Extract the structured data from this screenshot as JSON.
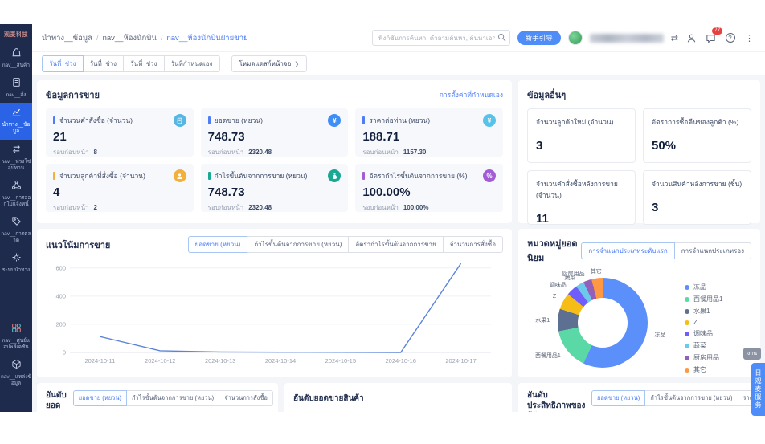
{
  "app": {
    "logo_text": "观麦科技"
  },
  "sidebar": {
    "items": [
      {
        "label": "nav__สินค้า",
        "icon": "bag-icon",
        "active": false
      },
      {
        "label": "nav__สั่ง",
        "icon": "order-icon",
        "active": false
      },
      {
        "label": "นำทาง__ข้อมูล",
        "icon": "chart-icon",
        "active": true
      },
      {
        "label": "nav__ห่วงโซ่อุปทาน",
        "icon": "supply-icon",
        "active": false
      },
      {
        "label": "nav__การออกใบแจ้งหนี้",
        "icon": "invoice-icon",
        "active": false
      },
      {
        "label": "nav__การตลาด",
        "icon": "tag-icon",
        "active": false
      },
      {
        "label": "ระบบนำทาง__",
        "icon": "gear-icon",
        "active": false
      },
      {
        "label": "nav__ศูนย์แอปพลิเคชัน",
        "icon": "apps-icon",
        "active": false,
        "gap_before": true
      },
      {
        "label": "nav__แหล่งข้อมูล",
        "icon": "box-icon",
        "active": false
      }
    ]
  },
  "breadcrumb": {
    "items": [
      "นำทาง__ข้อมูล",
      "nav__ห้องนักบิน",
      "nav__ห้องนักบินฝ่ายขาย"
    ]
  },
  "header": {
    "search_placeholder": "ฟังก์ชันการค้นหา, คำถามค้นหา, ค้นหาเอกสาร",
    "guide_button": "新手引导",
    "message_badge": "77"
  },
  "filters": {
    "tabs": [
      "วันที่_ช่วง",
      "วันที่_ช่วง",
      "วันที่_ช่วง",
      "วันที่กำหนดเอง"
    ],
    "active_index": 0,
    "fullscreen_button": "โหมดแดสก์หน้าจอ",
    "fullscreen_chevron": "❯"
  },
  "sales_panel": {
    "title": "ข้อมูลการขาย",
    "settings_link": "การตั้งค่าที่กำหนดเอง",
    "prev_label": "รอบก่อนหน้า",
    "cards": [
      {
        "title": "จำนวนคำสั่งซื้อ (จำนวน)",
        "value": "21",
        "prev": "8",
        "accent": "#4e7df7",
        "icon": "order-count-icon",
        "icon_bg": "#57b7e3",
        "glyph": "doc"
      },
      {
        "title": "ยอดขาย (หยวน)",
        "value": "748.73",
        "prev": "2320.48",
        "accent": "#4e7df7",
        "icon": "sales-yen-icon",
        "icon_bg": "#3e8ef7",
        "glyph": "yen"
      },
      {
        "title": "ราคาต่อท่าน (หยวน)",
        "value": "188.71",
        "prev": "1157.30",
        "accent": "#4e7df7",
        "icon": "per-customer-icon",
        "icon_bg": "#57c3e8",
        "glyph": "yen"
      },
      {
        "title": "จำนวนลูกค้าที่สั่งซื้อ (จำนวน)",
        "value": "4",
        "prev": "2",
        "accent": "#f3b13c",
        "icon": "customer-icon",
        "icon_bg": "#f3b13c",
        "glyph": "person"
      },
      {
        "title": "กำไรขั้นต้นจากการขาย (หยวน)",
        "value": "748.73",
        "prev": "2320.48",
        "accent": "#18a893",
        "icon": "profit-icon",
        "icon_bg": "#18a893",
        "glyph": "moneybag"
      },
      {
        "title": "อัตรากำไรขั้นต้นจากการขาย (%)",
        "value": "100.00%",
        "prev": "100.00%",
        "accent": "#a25dd6",
        "icon": "margin-icon",
        "icon_bg": "#a25dd6",
        "glyph": "percent"
      }
    ]
  },
  "other_panel": {
    "title": "ข้อมูลอื่นๆ",
    "cards": [
      {
        "label": "จำนวนลูกค้าใหม่ (จำนวน)",
        "value": "3"
      },
      {
        "label": "อัตราการซื้อคืนของลูกค้า (%)",
        "value": "50%"
      },
      {
        "label": "จำนวนคำสั่งซื้อหลังการขาย (จำนวน)",
        "value": "11"
      },
      {
        "label": "จำนวนสินค้าหลังการขาย (ชิ้น)",
        "value": "3"
      }
    ]
  },
  "trend_panel": {
    "title": "แนวโน้มการขาย",
    "tabs": [
      "ยอดขาย (หยวน)",
      "กำไรขั้นต้นจากการขาย (หยวน)",
      "อัตรากำไรขั้นต้นจากการขาย",
      "จำนวนการสั่งซื้อ"
    ],
    "active_index": 0
  },
  "category_panel": {
    "title": "หมวดหมู่ยอดนิยม",
    "tabs": [
      "การจำแนกประเภทระดับแรก",
      "การจำแนกประเภทรอง"
    ],
    "active_index": 0
  },
  "rank_panels": {
    "seller": {
      "title": "อันดับยอดขายของผู้ขาย",
      "tabs": [
        "ยอดขาย (หยวน)",
        "กำไรขั้นต้นจากการขาย (หยวน)",
        "จำนวนการสั่งซื้อ"
      ],
      "active_index": 0
    },
    "product": {
      "title": "อันดับยอดขายสินค้า"
    },
    "manager": {
      "title": "อันดับประสิทธิภาพของผู้จัดการ",
      "tabs": [
        "ยอดขาย (หยวน)",
        "กำไรขั้นต้นจากการขาย (หยวน)",
        "ราคาต่อท่าน (หยวน)",
        "จำนวนการสั่งซื้อ"
      ],
      "active_index": 0
    }
  },
  "floats": {
    "task_badge": "งาน",
    "service_button": "日观麦服务"
  },
  "chart_data": [
    {
      "type": "line",
      "title": "แนวโน้มการขาย",
      "series": [
        {
          "name": "ยอดขาย (หยวน)",
          "values": [
            113,
            12,
            3,
            2,
            1,
            0,
            632
          ]
        }
      ],
      "x": [
        "2024-10-11",
        "2024-10-12",
        "2024-10-13",
        "2024-10-14",
        "2024-10-15",
        "2024-10-16",
        "2024-10-17"
      ],
      "ylim": [
        0,
        650
      ],
      "yticks": [
        0,
        200,
        400,
        600
      ],
      "grid": true,
      "legend_position": "none",
      "line_color": "#5b84d8"
    },
    {
      "type": "pie",
      "title": "หมวดหมู่ยอดนิยม",
      "labels": [
        "冻品",
        "西餐用品1",
        "水果1",
        "Z",
        "调味品",
        "蔬菜",
        "厨房用品",
        "其它"
      ],
      "values": [
        57,
        15,
        8,
        6,
        4,
        3,
        3,
        4
      ],
      "unit": "percent",
      "colors": [
        "#5b8ff9",
        "#5ad8a6",
        "#5d7092",
        "#f6bd16",
        "#6f5ef9",
        "#6dc8ec",
        "#945fb9",
        "#ff9845"
      ],
      "legend_position": "right",
      "donut": true
    }
  ]
}
